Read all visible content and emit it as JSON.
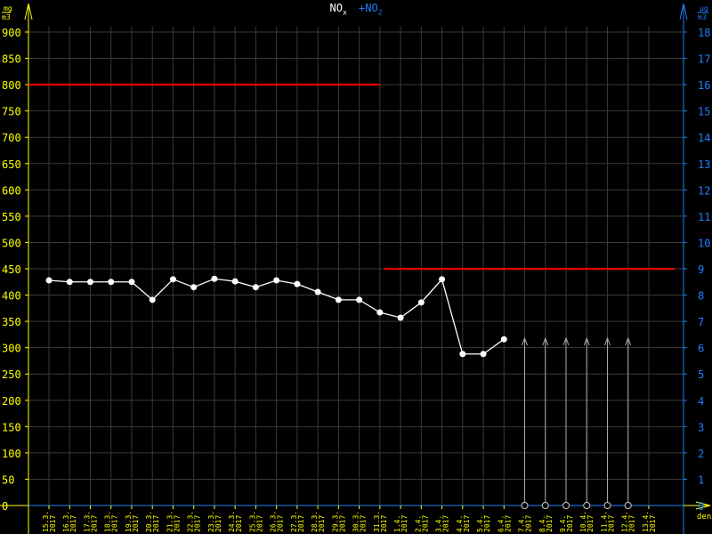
{
  "chart_data": {
    "type": "line",
    "title_parts": {
      "nox": "NO",
      "nox_sub": "x",
      "no2": "+NO",
      "no2_sub": "2"
    },
    "xlabel": "den",
    "ylabel_left": {
      "num": "mg",
      "den": "m3"
    },
    "ylabel_right": {
      "num": "µg",
      "den": "m3"
    },
    "ylim_left": [
      0,
      900
    ],
    "ylim_right": [
      0,
      18
    ],
    "yticks_left": [
      0,
      50,
      100,
      150,
      200,
      250,
      300,
      350,
      400,
      450,
      500,
      550,
      600,
      650,
      700,
      750,
      800,
      850,
      900
    ],
    "yticks_right": [
      1,
      2,
      3,
      4,
      5,
      6,
      7,
      8,
      9,
      10,
      11,
      12,
      13,
      14,
      15,
      16,
      17,
      18
    ],
    "right_axis_zero_label": "0",
    "categories": [
      "15.3.",
      "16.3.",
      "17.3.",
      "18.3.",
      "19.3.",
      "20.3.",
      "21.3.",
      "22.3.",
      "23.3.",
      "24.3.",
      "25.3.",
      "26.3.",
      "27.3.",
      "28.3.",
      "29.3.",
      "30.3.",
      "31.3.",
      "1.4.",
      "2.4.",
      "3.4.",
      "4.4.",
      "5.4.",
      "6.4.",
      "7.4.",
      "8.4.",
      "9.4.",
      "10.4.",
      "11.4.",
      "12.4.",
      "13.4."
    ],
    "year": "2017",
    "series": [
      {
        "values": [
          428,
          425,
          425,
          425,
          425,
          391,
          430,
          415,
          431,
          426,
          415,
          428,
          421,
          406,
          391,
          391,
          367,
          357,
          386,
          430,
          288,
          288,
          316,
          null,
          null,
          null,
          null,
          null,
          null,
          null
        ]
      }
    ],
    "missing_markers": [
      "7.4.",
      "8.4.",
      "9.4.",
      "10.4.",
      "11.4.",
      "12.4."
    ],
    "limits": [
      {
        "value": 800,
        "from": "15.3.",
        "to": "31.3."
      },
      {
        "value": 450,
        "from": "31.3.",
        "to": "13.4."
      }
    ],
    "grid": true,
    "colors": {
      "left_axis": "#ffff00",
      "right_axis": "#1e7fff",
      "series": "#ffffff",
      "limit": "#ff0000",
      "grid": "#3a3a3a"
    }
  }
}
